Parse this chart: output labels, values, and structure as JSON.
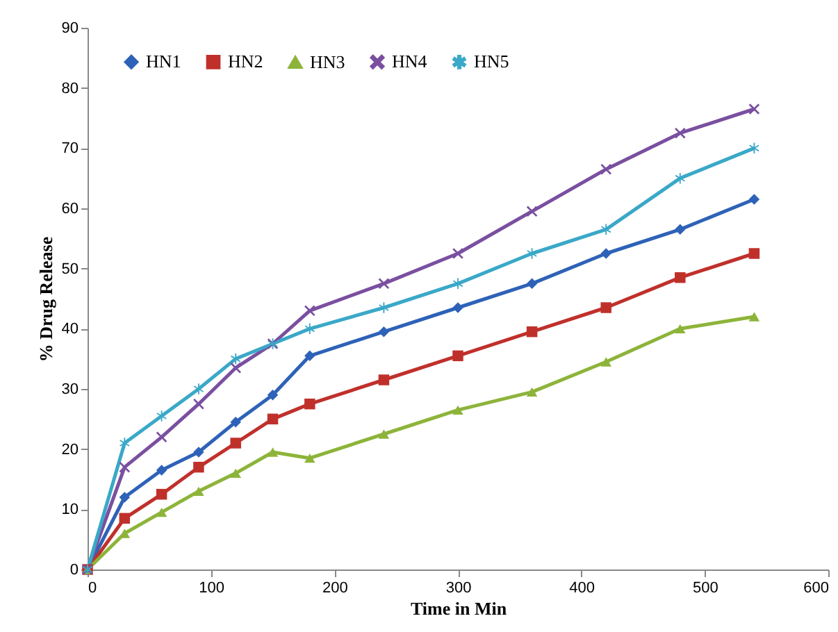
{
  "chart_data": {
    "type": "line",
    "xlabel": "Time in Min",
    "ylabel": "% Drug Release",
    "x": [
      0,
      30,
      60,
      90,
      120,
      150,
      180,
      240,
      300,
      360,
      420,
      480,
      540
    ],
    "xlim": [
      0,
      600
    ],
    "xticks": [
      0,
      100,
      200,
      300,
      400,
      500,
      600
    ],
    "ylim": [
      0,
      90
    ],
    "yticks": [
      0,
      10,
      20,
      30,
      40,
      50,
      60,
      70,
      80,
      90
    ],
    "grid": false,
    "legend": "top left",
    "line_style": "solid",
    "series": [
      {
        "name": "HN1",
        "color": "#2e62b8",
        "marker": "diamond",
        "values": [
          0,
          12,
          16.5,
          19.5,
          24.5,
          29,
          35.5,
          39.5,
          43.5,
          47.5,
          52.5,
          56.5,
          61.5
        ]
      },
      {
        "name": "HN2",
        "color": "#c0302b",
        "marker": "square",
        "values": [
          0,
          8.5,
          12.5,
          17,
          21,
          25,
          27.5,
          31.5,
          35.5,
          39.5,
          43.5,
          48.5,
          52.5
        ]
      },
      {
        "name": "HN3",
        "color": "#8db43a",
        "marker": "triangle",
        "values": [
          0,
          6,
          9.5,
          13,
          16,
          19.5,
          18.5,
          22.5,
          26.5,
          29.5,
          34.5,
          40,
          42
        ]
      },
      {
        "name": "HN4",
        "color": "#7a4fa0",
        "marker": "cross",
        "values": [
          0,
          17,
          22,
          27.5,
          33.5,
          37.5,
          43,
          47.5,
          52.5,
          59.5,
          66.5,
          72.5,
          76.5
        ]
      },
      {
        "name": "HN5",
        "color": "#3aa8c8",
        "marker": "star",
        "values": [
          0,
          21,
          25.5,
          30,
          35,
          37.5,
          40,
          43.5,
          47.5,
          52.5,
          56.5,
          65,
          70
        ]
      }
    ]
  }
}
